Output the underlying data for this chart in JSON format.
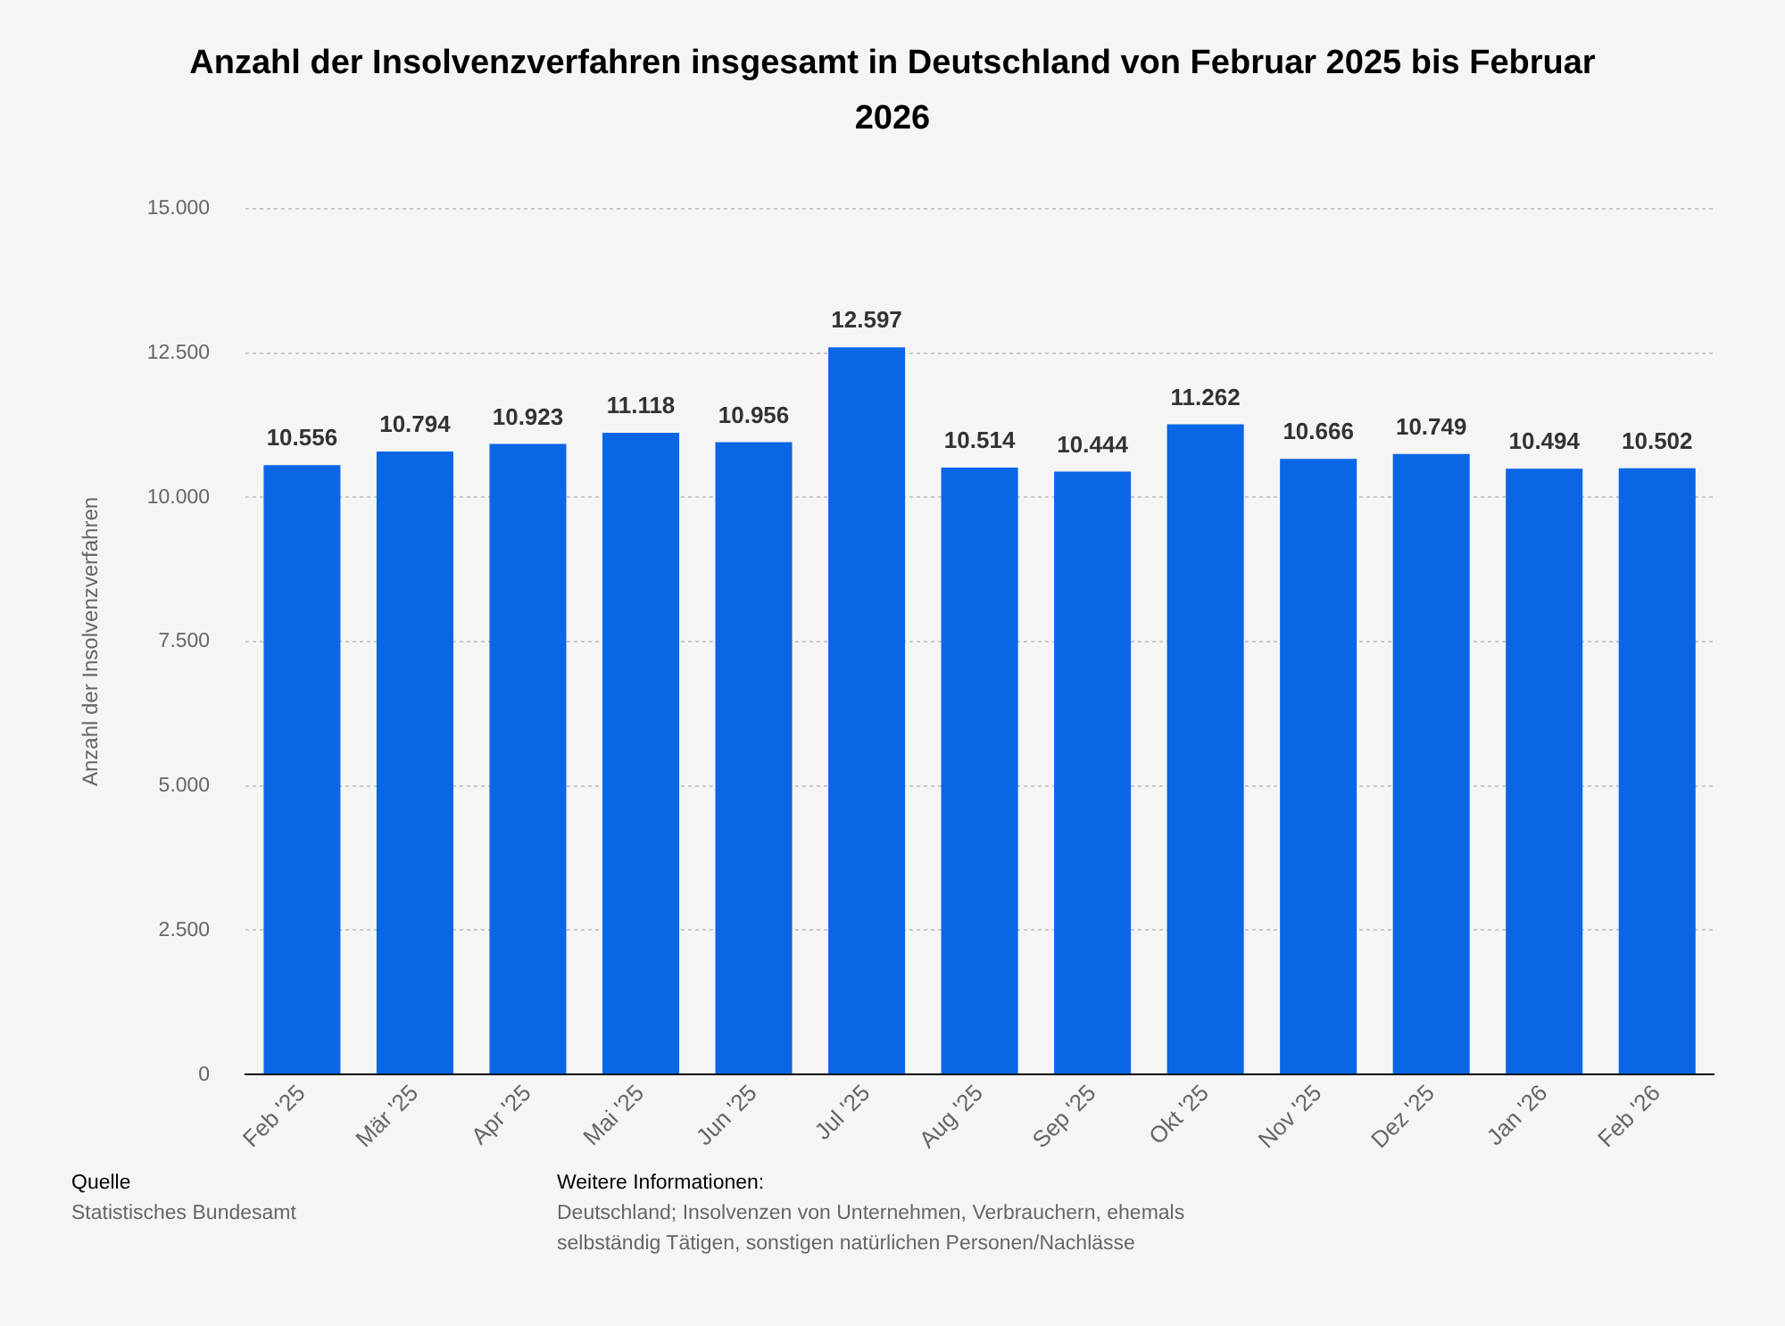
{
  "chart_data": {
    "type": "bar",
    "title": "Anzahl der Insolvenzverfahren insgesamt in Deutschland von Februar 2025 bis Februar 2026",
    "ylabel": "Anzahl der Insolvenzverfahren",
    "categories": [
      "Feb '25",
      "Mär '25",
      "Apr '25",
      "Mai '25",
      "Jun '25",
      "Jul '25",
      "Aug '25",
      "Sep '25",
      "Okt '25",
      "Nov '25",
      "Dez '25",
      "Jan '26",
      "Feb '26"
    ],
    "values": [
      10556,
      10794,
      10923,
      11118,
      10956,
      12597,
      10514,
      10444,
      11262,
      10666,
      10749,
      10494,
      10502
    ],
    "color": "#0a66e4",
    "ylim": [
      0,
      15000
    ],
    "yticks": [
      {
        "value": 0,
        "label": "0"
      },
      {
        "value": 2500,
        "label": "2.500"
      },
      {
        "value": 5000,
        "label": "5.000"
      },
      {
        "value": 7500,
        "label": "7.500"
      },
      {
        "value": 10000,
        "label": "10.000"
      },
      {
        "value": 12500,
        "label": "12.500"
      },
      {
        "value": 15000,
        "label": "15.000"
      }
    ],
    "value_labels": [
      "10.556",
      "10.794",
      "10.923",
      "11.118",
      "10.956",
      "12.597",
      "10.514",
      "10.444",
      "11.262",
      "10.666",
      "10.749",
      "10.494",
      "10.502"
    ],
    "grid": "y",
    "legend": false,
    "annotations": [
      "Quelle",
      "Statistisches Bundesamt",
      "Weitere Informationen:",
      "Deutschland; Insolvenzen von Unternehmen, Verbrauchern, ehemals selbständig Tätigen, sonstigen natürlichen Personen/Nachlässe"
    ]
  }
}
